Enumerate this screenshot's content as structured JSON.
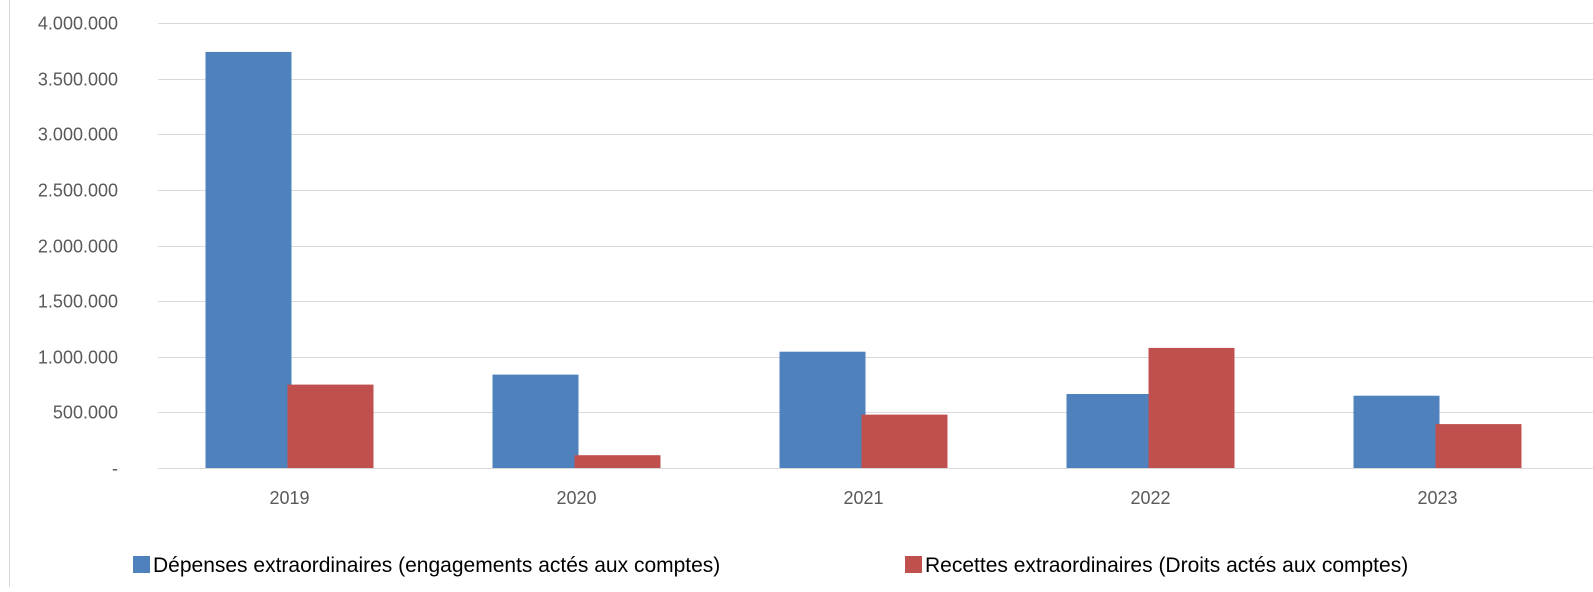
{
  "chart_data": {
    "type": "bar",
    "title": "",
    "xlabel": "",
    "ylabel": "",
    "categories": [
      "2019",
      "2020",
      "2021",
      "2022",
      "2023"
    ],
    "series": [
      {
        "name": "Dépenses extraordinaires (engagements actés aux comptes)",
        "values": [
          3740000,
          840000,
          1045000,
          665000,
          650000
        ],
        "color": "#4f81bd"
      },
      {
        "name": "Recettes extraordinaires (Droits actés aux comptes)",
        "values": [
          750000,
          115000,
          480000,
          1080000,
          395000
        ],
        "color": "#c0504d"
      }
    ],
    "ylim": [
      0,
      4000000
    ],
    "yticks": [
      0,
      500000,
      1000000,
      1500000,
      2000000,
      2500000,
      3000000,
      3500000,
      4000000
    ],
    "ytick_labels": [
      "-",
      "500.000",
      "1.000.000",
      "1.500.000",
      "2.000.000",
      "2.500.000",
      "3.000.000",
      "3.500.000",
      "4.000.000"
    ],
    "grid": true,
    "legend_position": "bottom",
    "gridline_color": "#d9d9d9"
  }
}
